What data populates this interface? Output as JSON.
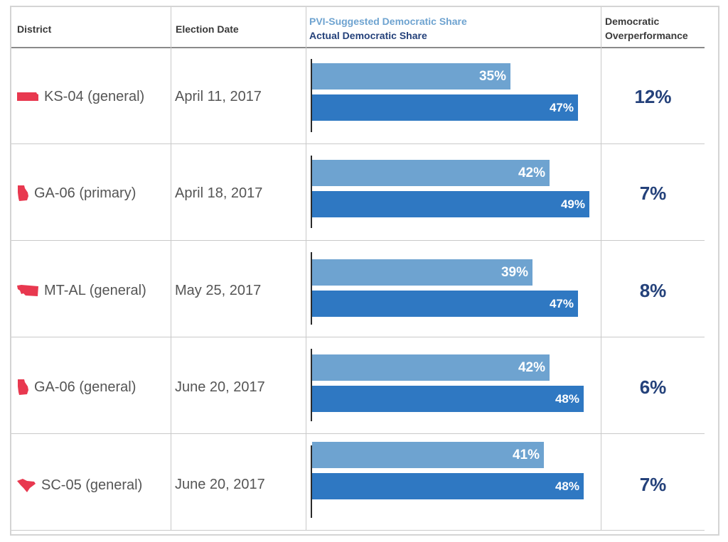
{
  "header": {
    "district": "District",
    "election_date": "Election Date",
    "legend_pvi": "PVI-Suggested Democratic Share",
    "legend_actual": "Actual Democratic Share",
    "overperf_line1": "Democratic",
    "overperf_line2": "Overperformance"
  },
  "colors": {
    "pvi": "#6ea3d0",
    "actual": "#2f78c2",
    "state_shape": "#e8384f",
    "overperformance_text": "#24417a"
  },
  "rows": [
    {
      "state_icon": "kansas-shape-icon",
      "district": "KS-04 (general)",
      "date": "April 11, 2017",
      "pvi_label": "35%",
      "actual_label": "47%",
      "overperformance": "12%"
    },
    {
      "state_icon": "georgia-shape-icon",
      "district": "GA-06 (primary)",
      "date": "April 18, 2017",
      "pvi_label": "42%",
      "actual_label": "49%",
      "overperformance": "7%"
    },
    {
      "state_icon": "montana-shape-icon",
      "district": "MT-AL (general)",
      "date": "May 25, 2017",
      "pvi_label": "39%",
      "actual_label": "47%",
      "overperformance": "8%"
    },
    {
      "state_icon": "georgia-shape-icon",
      "district": "GA-06 (general)",
      "date": "June 20, 2017",
      "pvi_label": "42%",
      "actual_label": "48%",
      "overperformance": "6%"
    },
    {
      "state_icon": "south-carolina-shape-icon",
      "district": "SC-05 (general)",
      "date": "June 20, 2017",
      "pvi_label": "41%",
      "actual_label": "48%",
      "overperformance": "7%"
    }
  ],
  "chart_data": {
    "type": "bar",
    "categories": [
      "KS-04 (general)",
      "GA-06 (primary)",
      "MT-AL (general)",
      "GA-06 (general)",
      "SC-05 (general)"
    ],
    "series": [
      {
        "name": "PVI-Suggested Democratic Share",
        "values": [
          35,
          42,
          39,
          42,
          41
        ]
      },
      {
        "name": "Actual Democratic Share",
        "values": [
          47,
          49,
          47,
          48,
          48
        ]
      }
    ],
    "xlim": [
      0,
      49
    ],
    "grid": false,
    "legend": "top"
  }
}
